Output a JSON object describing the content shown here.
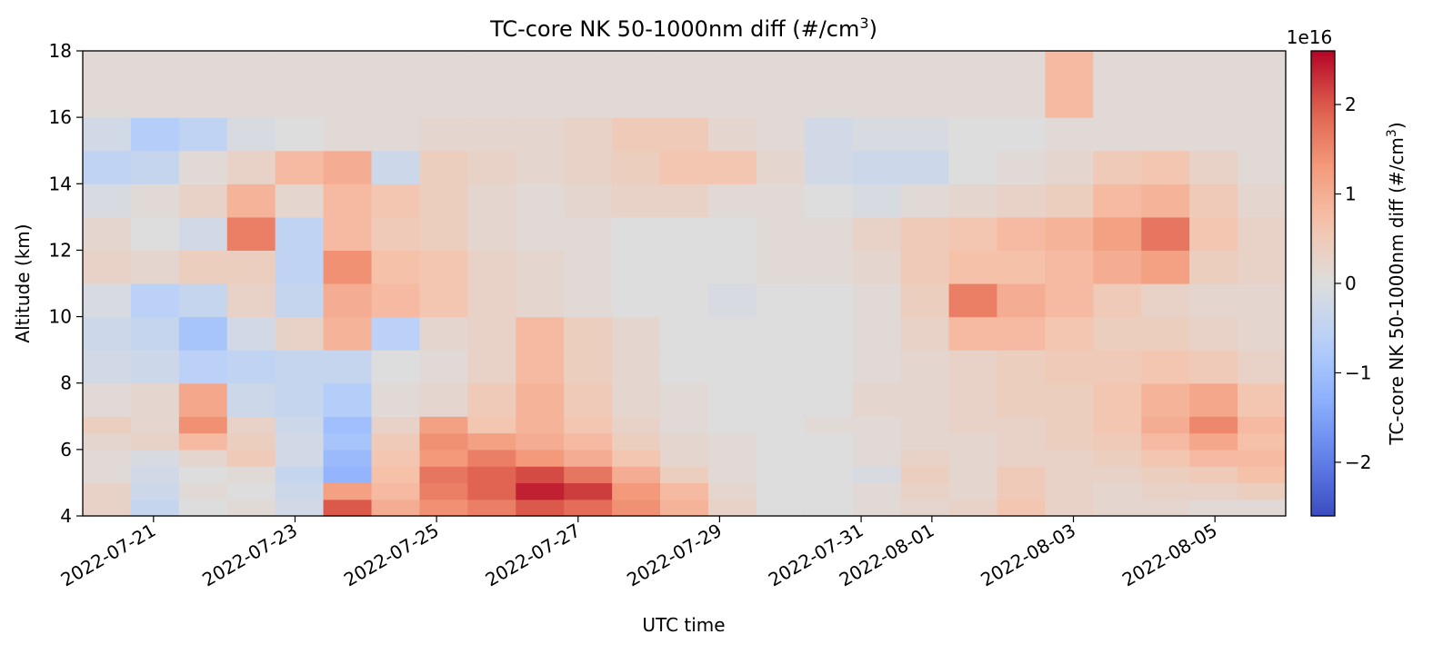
{
  "chart_data": {
    "type": "heatmap",
    "title_prefix": "TC-core NK 50-1000nm diff (#/cm",
    "title_sup": "3",
    "title_suffix": ")",
    "xlabel": "UTC time",
    "ylabel": "Altitude (km)",
    "colorbar_label_prefix": "TC-core NK 50-1000nm diff (#/cm",
    "colorbar_label_sup": "3",
    "colorbar_label_suffix": ")",
    "colorbar_multiplier": "1e16",
    "colorbar_range": [
      -2.6,
      2.6
    ],
    "colorbar_ticks": [
      "2",
      "1",
      "0",
      "−1",
      "−2"
    ],
    "colorbar_tick_values": [
      2,
      1,
      0,
      -1,
      -2
    ],
    "colormap": "coolwarm",
    "xlim_days": [
      -0.5,
      16.5
    ],
    "ylim": [
      4,
      18
    ],
    "x_ticks": [
      "2022-07-21",
      "2022-07-23",
      "2022-07-25",
      "2022-07-27",
      "2022-07-29",
      "2022-07-31",
      "2022-08-01",
      "2022-08-03",
      "2022-08-05"
    ],
    "x_tick_dates": [
      0.5,
      2.5,
      4.5,
      6.5,
      8.5,
      10.5,
      11.5,
      13.5,
      15.5
    ],
    "y_ticks": [
      "4",
      "6",
      "8",
      "10",
      "12",
      "14",
      "16",
      "18"
    ],
    "y_tick_values": [
      4,
      6,
      8,
      10,
      12,
      14,
      16,
      18
    ],
    "altitude_bins": [
      4.5,
      5.0,
      5.5,
      6.0,
      6.5,
      7.0,
      8.0,
      9.0,
      10.0,
      11.0,
      12.0,
      13.0,
      14.0,
      15.0,
      16.0,
      17.0,
      18.0
    ],
    "values_1e16": [
      [
        0.3,
        -0.4,
        0.0,
        0.1,
        -0.2,
        2.0,
        1.0,
        1.4,
        1.6,
        2.0,
        1.8,
        1.4,
        0.9,
        0.3,
        0.0,
        0.0,
        0.1,
        0.2,
        0.3,
        0.6,
        0.3,
        0.2,
        0.2,
        0.1,
        0.1
      ],
      [
        0.3,
        -0.3,
        0.1,
        0.0,
        -0.3,
        1.2,
        0.8,
        1.6,
        1.9,
        2.4,
        2.2,
        1.3,
        0.8,
        0.2,
        0.0,
        0.0,
        0.1,
        0.3,
        0.2,
        0.5,
        0.3,
        0.2,
        0.3,
        0.3,
        0.4
      ],
      [
        0.1,
        -0.2,
        0.0,
        0.1,
        -0.4,
        -1.2,
        0.7,
        1.7,
        1.9,
        2.1,
        1.7,
        1.0,
        0.4,
        0.1,
        0.0,
        0.0,
        -0.1,
        0.4,
        0.2,
        0.5,
        0.3,
        0.3,
        0.4,
        0.5,
        0.7
      ],
      [
        0.1,
        -0.1,
        0.2,
        0.5,
        -0.2,
        -1.1,
        0.6,
        1.3,
        1.6,
        1.3,
        1.0,
        0.6,
        0.2,
        0.1,
        0.0,
        0.0,
        0.1,
        0.3,
        0.2,
        0.3,
        0.3,
        0.4,
        0.6,
        0.8,
        0.8
      ],
      [
        0.2,
        0.3,
        0.8,
        0.4,
        -0.2,
        -0.9,
        0.5,
        1.4,
        1.2,
        1.0,
        0.8,
        0.4,
        0.2,
        0.1,
        0.0,
        0.0,
        0.1,
        0.2,
        0.2,
        0.3,
        0.4,
        0.5,
        0.8,
        1.1,
        0.7
      ],
      [
        0.4,
        0.2,
        1.4,
        0.3,
        -0.3,
        -1.0,
        0.3,
        1.2,
        0.6,
        0.9,
        0.6,
        0.3,
        0.1,
        0.0,
        0.0,
        0.1,
        0.1,
        0.2,
        0.3,
        0.3,
        0.4,
        0.6,
        1.0,
        1.5,
        0.8
      ],
      [
        0.1,
        0.2,
        1.1,
        -0.3,
        -0.4,
        -0.7,
        0.1,
        0.2,
        0.5,
        0.9,
        0.5,
        0.2,
        0.1,
        0.0,
        0.0,
        0.0,
        0.2,
        0.2,
        0.3,
        0.4,
        0.4,
        0.6,
        0.9,
        1.1,
        0.6
      ],
      [
        -0.2,
        -0.3,
        -0.6,
        -0.5,
        -0.4,
        -0.4,
        0.0,
        0.1,
        0.3,
        0.8,
        0.4,
        0.2,
        0.0,
        0.0,
        0.0,
        0.0,
        0.1,
        0.2,
        0.3,
        0.4,
        0.5,
        0.5,
        0.6,
        0.5,
        0.3
      ],
      [
        -0.3,
        -0.4,
        -0.9,
        -0.2,
        0.3,
        0.9,
        -0.6,
        0.2,
        0.3,
        0.8,
        0.4,
        0.2,
        0.0,
        0.0,
        0.0,
        0.0,
        0.1,
        0.3,
        0.8,
        0.8,
        0.6,
        0.4,
        0.4,
        0.3,
        0.2
      ],
      [
        -0.1,
        -0.6,
        -0.4,
        0.3,
        -0.4,
        1.0,
        0.8,
        0.6,
        0.3,
        0.2,
        0.1,
        0.0,
        0.0,
        -0.1,
        0.0,
        0.0,
        0.1,
        0.4,
        1.6,
        1.0,
        0.8,
        0.5,
        0.3,
        0.2,
        0.2
      ],
      [
        0.3,
        0.2,
        0.4,
        0.4,
        -0.5,
        1.4,
        0.7,
        0.6,
        0.3,
        0.2,
        0.1,
        0.0,
        0.0,
        0.0,
        0.1,
        0.1,
        0.2,
        0.5,
        0.7,
        0.7,
        0.8,
        1.0,
        1.2,
        0.4,
        0.3
      ],
      [
        0.2,
        0.0,
        -0.2,
        1.6,
        -0.5,
        0.8,
        0.5,
        0.4,
        0.2,
        0.1,
        0.1,
        0.0,
        0.0,
        0.0,
        0.1,
        0.1,
        0.3,
        0.5,
        0.6,
        0.8,
        0.9,
        1.2,
        1.7,
        0.6,
        0.3
      ],
      [
        -0.1,
        0.1,
        0.3,
        0.9,
        0.2,
        0.8,
        0.6,
        0.4,
        0.2,
        0.1,
        0.2,
        0.3,
        0.3,
        0.1,
        0.1,
        0.0,
        -0.1,
        0.1,
        0.2,
        0.3,
        0.4,
        0.8,
        0.9,
        0.5,
        0.2
      ],
      [
        -0.5,
        -0.4,
        0.1,
        0.3,
        0.8,
        1.0,
        -0.3,
        0.4,
        0.3,
        0.2,
        0.3,
        0.4,
        0.6,
        0.6,
        0.2,
        -0.2,
        -0.3,
        -0.3,
        0.0,
        0.1,
        0.2,
        0.5,
        0.6,
        0.3,
        0.1
      ],
      [
        -0.2,
        -0.7,
        -0.5,
        -0.1,
        0.0,
        0.1,
        0.1,
        0.2,
        0.2,
        0.2,
        0.3,
        0.5,
        0.5,
        0.2,
        0.1,
        -0.2,
        -0.1,
        -0.1,
        0.0,
        0.0,
        0.1,
        0.1,
        0.1,
        0.1,
        0.1
      ],
      [
        0.1,
        0.1,
        0.1,
        0.1,
        0.1,
        0.1,
        0.1,
        0.1,
        0.1,
        0.1,
        0.1,
        0.1,
        0.1,
        0.1,
        0.1,
        0.1,
        0.1,
        0.1,
        0.1,
        0.1,
        0.8,
        0.1,
        0.1,
        0.1,
        0.1
      ],
      [
        0.1,
        0.1,
        0.1,
        0.1,
        0.1,
        0.1,
        0.1,
        0.1,
        0.1,
        0.1,
        0.1,
        0.1,
        0.1,
        0.1,
        0.1,
        0.1,
        0.1,
        0.1,
        0.1,
        0.1,
        0.8,
        0.1,
        0.1,
        0.1,
        0.1
      ]
    ]
  }
}
